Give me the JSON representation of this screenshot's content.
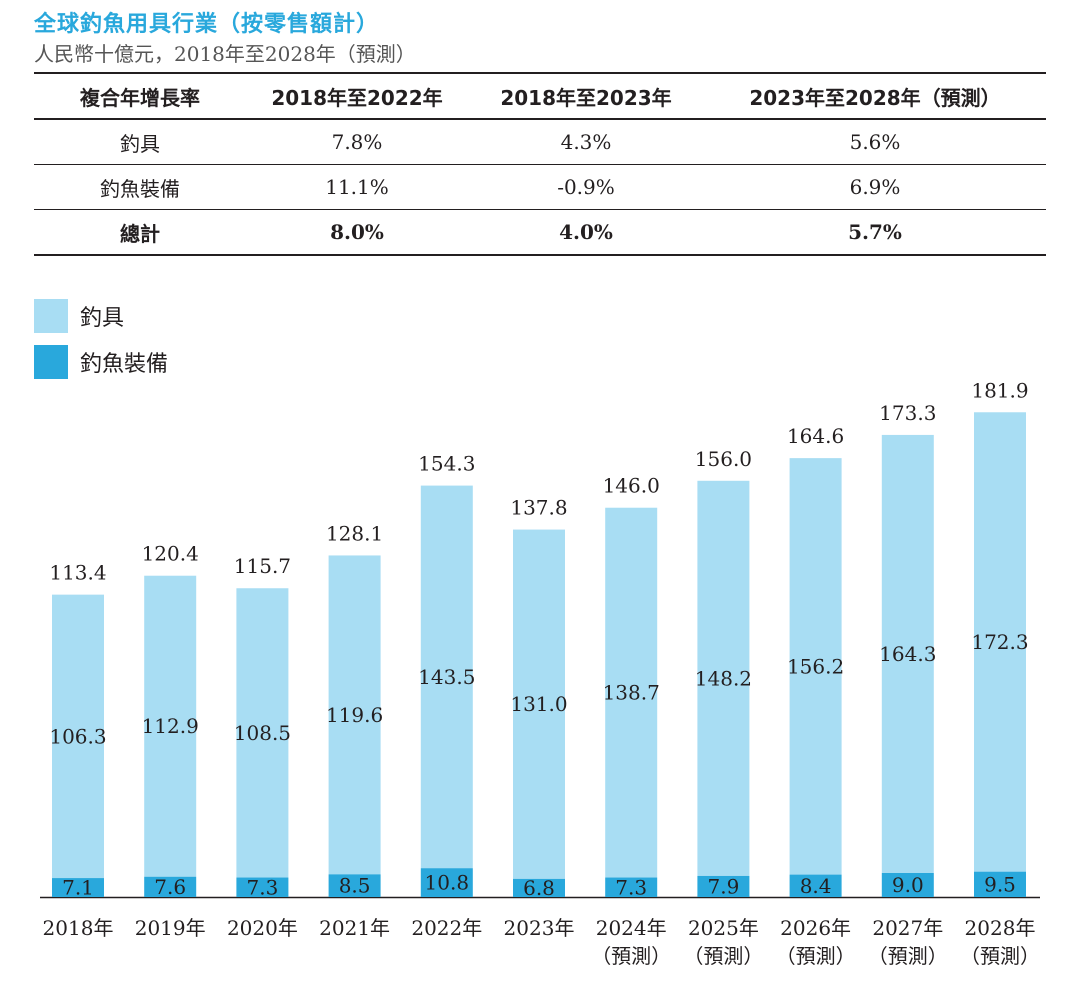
{
  "title": "全球釣魚用具行業（按零售額計）",
  "subtitle": "人民幣十億元，2018年至2028年（預測）",
  "cagr_table": {
    "headers": [
      "複合年增長率",
      "2018年至2022年",
      "2018年至2023年",
      "2023年至2028年（預測）"
    ],
    "rows": [
      {
        "label": "釣具",
        "values": [
          "7.8%",
          "4.3%",
          "5.6%"
        ]
      },
      {
        "label": "釣魚裝備",
        "values": [
          "11.1%",
          "-0.9%",
          "6.9%"
        ]
      },
      {
        "label": "總計",
        "values": [
          "8.0%",
          "4.0%",
          "5.7%"
        ]
      }
    ]
  },
  "colors": {
    "tackle": "#a8ddf3",
    "equipment": "#29a8dc",
    "title": "#29a8dc"
  },
  "chart_data": {
    "type": "bar",
    "stacked": true,
    "legend_position": "top-left",
    "categories": [
      "2018年",
      "2019年",
      "2020年",
      "2021年",
      "2022年",
      "2023年",
      "2024年",
      "2025年",
      "2026年",
      "2027年",
      "2028年"
    ],
    "category_sublabels": [
      "",
      "",
      "",
      "",
      "",
      "",
      "（預測）",
      "（預測）",
      "（預測）",
      "（預測）",
      "（預測）"
    ],
    "series": [
      {
        "name": "釣魚裝備",
        "values": [
          7.1,
          7.6,
          7.3,
          8.5,
          10.8,
          6.8,
          7.3,
          7.9,
          8.4,
          9.0,
          9.5
        ]
      },
      {
        "name": "釣具",
        "values": [
          106.3,
          112.9,
          108.5,
          119.6,
          143.5,
          131.0,
          138.7,
          148.2,
          156.2,
          164.3,
          172.3
        ]
      }
    ],
    "totals": [
      "113.4",
      "120.4",
      "115.7",
      "128.1",
      "154.3",
      "137.8",
      "146.0",
      "156.0",
      "164.6",
      "173.3",
      "181.9"
    ],
    "ylim": [
      0,
      181.9
    ]
  }
}
